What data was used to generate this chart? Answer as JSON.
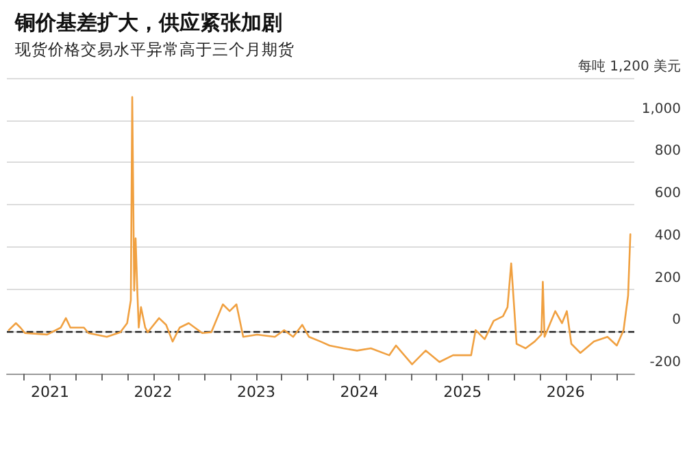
{
  "chart_data": {
    "type": "line",
    "title": "铜价基差扩大，供应紧张加剧",
    "subtitle": "现货价格交易水平异常高于三个月期货",
    "x": [
      "2020-08-08",
      "2020-09-02",
      "2020-09-18",
      "2020-10-04",
      "2020-12-22",
      "2021-02-08",
      "2021-02-26",
      "2021-03-14",
      "2021-05-01",
      "2021-05-17",
      "2021-07-21",
      "2021-09-07",
      "2021-10-01",
      "2021-10-14",
      "2021-10-19",
      "2021-10-26",
      "2021-10-31",
      "2021-11-06",
      "2021-11-11",
      "2021-11-19",
      "2021-12-04",
      "2021-12-13",
      "2022-01-22",
      "2022-02-16",
      "2022-03-11",
      "2022-04-05",
      "2022-05-07",
      "2022-06-24",
      "2022-07-26",
      "2022-09-05",
      "2022-09-29",
      "2022-10-23",
      "2022-11-16",
      "2023-01-04",
      "2023-03-08",
      "2023-04-10",
      "2023-05-12",
      "2023-06-13",
      "2023-07-07",
      "2023-08-17",
      "2023-09-18",
      "2023-11-06",
      "2023-12-24",
      "2024-02-11",
      "2024-04-16",
      "2024-05-10",
      "2024-07-06",
      "2024-08-23",
      "2024-10-11",
      "2024-11-28",
      "2025-01-31",
      "2025-02-16",
      "2025-03-20",
      "2025-04-21",
      "2025-05-24",
      "2025-06-09",
      "2025-06-22",
      "2025-07-03",
      "2025-07-11",
      "2025-08-12",
      "2025-09-13",
      "2025-10-07",
      "2025-10-12",
      "2025-10-18",
      "2025-11-25",
      "2025-12-19",
      "2026-01-05",
      "2026-01-21",
      "2026-02-22",
      "2026-04-11",
      "2026-05-29",
      "2026-07-01",
      "2026-07-25",
      "2026-08-10",
      "2026-08-18"
    ],
    "series": [
      {
        "color": "#f0a040",
        "values": [
          6,
          39,
          18,
          -8,
          -15,
          18,
          63,
          18,
          18,
          -8,
          -26,
          -4,
          39,
          148,
          1110,
          193,
          441,
          193,
          18,
          115,
          18,
          -4,
          63,
          31,
          -48,
          18,
          39,
          -8,
          -4,
          128,
          96,
          128,
          -26,
          -15,
          -26,
          6,
          -26,
          31,
          -26,
          -48,
          -67,
          -80,
          -91,
          -80,
          -113,
          -67,
          -156,
          -91,
          -145,
          -113,
          -113,
          6,
          -37,
          50,
          72,
          115,
          322,
          104,
          -59,
          -80,
          -48,
          -15,
          235,
          -26,
          96,
          39,
          96,
          -59,
          -102,
          -48,
          -26,
          -67,
          6,
          170,
          460
        ]
      }
    ],
    "xlim": [
      "2020-08",
      "2026-09"
    ],
    "xticks": [
      {
        "value": "2020-10",
        "label": null
      },
      {
        "value": "2021",
        "label": "2021"
      },
      {
        "value": "2021-04",
        "label": null
      },
      {
        "value": "2021-07",
        "label": null
      },
      {
        "value": "2021-10",
        "label": null
      },
      {
        "value": "2022",
        "label": "2022"
      },
      {
        "value": "2022-04",
        "label": null
      },
      {
        "value": "2022-07",
        "label": null
      },
      {
        "value": "2022-10",
        "label": null
      },
      {
        "value": "2023",
        "label": "2023"
      },
      {
        "value": "2023-04",
        "label": null
      },
      {
        "value": "2023-07",
        "label": null
      },
      {
        "value": "2023-10",
        "label": null
      },
      {
        "value": "2024",
        "label": "2024"
      },
      {
        "value": "2024-04",
        "label": null
      },
      {
        "value": "2024-07",
        "label": null
      },
      {
        "value": "2024-10",
        "label": null
      },
      {
        "value": "2025",
        "label": "2025"
      },
      {
        "value": "2025-04",
        "label": null
      },
      {
        "value": "2025-07",
        "label": null
      },
      {
        "value": "2025-10",
        "label": null
      },
      {
        "value": "2026",
        "label": "2026"
      },
      {
        "value": "2026-04",
        "label": null
      },
      {
        "value": "2026-07",
        "label": null
      }
    ],
    "ylim": [
      -200,
      1200
    ],
    "yticks": [
      -200,
      0,
      200,
      400,
      600,
      800,
      {
        "value": 1000,
        "label": "1,000"
      },
      {
        "value": 1200,
        "label": "每吨 1,200 美元"
      }
    ],
    "ref_lines": [
      {
        "axis": "y",
        "value": 0,
        "label": null,
        "color": "#222222",
        "line_style": "dashed"
      }
    ],
    "grid": "y",
    "marker": "none",
    "line_style": "solid"
  }
}
